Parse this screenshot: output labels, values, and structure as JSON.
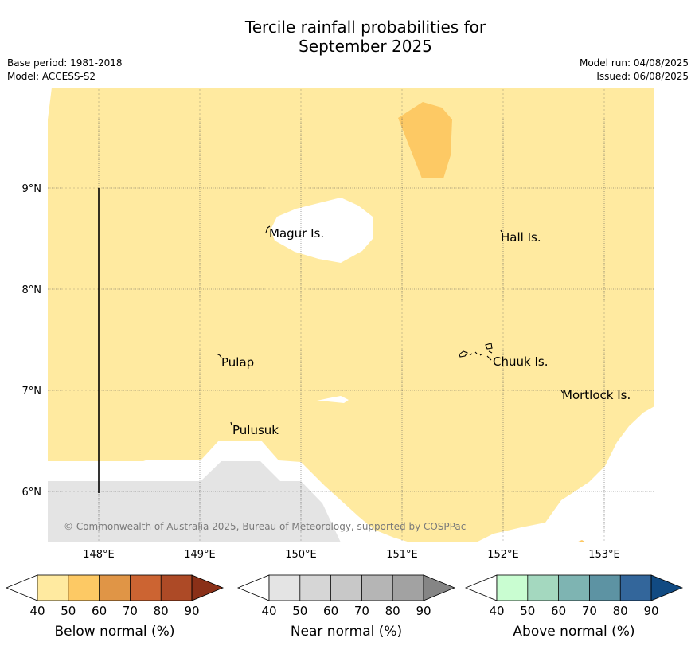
{
  "title": {
    "line1": "Tercile rainfall probabilities for",
    "line2": "September 2025"
  },
  "meta_left": {
    "base_period": "Base period: 1981-2018",
    "model": "Model: ACCESS-S2"
  },
  "meta_right": {
    "model_run": "Model run: 04/08/2025",
    "issued": "Issued: 06/08/2025"
  },
  "map": {
    "lat_labels": [
      "9°N",
      "8°N",
      "7°N",
      "6°N"
    ],
    "lon_labels": [
      "148°E",
      "149°E",
      "150°E",
      "151°E",
      "152°E",
      "153°E"
    ],
    "places": {
      "magur": "Magur Is.",
      "hall": "Hall Is.",
      "pulap": "Pulap",
      "chuuk": "Chuuk Is.",
      "mortlock": "Mortlock Is.",
      "pulusuk": "Pulusuk"
    },
    "copyright": "© Commonwealth of Australia 2025, Bureau of Meteorology, supported by COSPPac"
  },
  "legend": {
    "below": {
      "label": "Below normal (%)",
      "ticks": [
        "40",
        "50",
        "60",
        "70",
        "80",
        "90"
      ],
      "colors": [
        "#ffffff",
        "#ffeaa0",
        "#fdc964",
        "#e09546",
        "#cc6432",
        "#ad4a26",
        "#8a3018"
      ]
    },
    "near": {
      "label": "Near normal (%)",
      "ticks": [
        "40",
        "50",
        "60",
        "70",
        "80",
        "90"
      ],
      "colors": [
        "#ffffff",
        "#e4e4e4",
        "#d6d6d6",
        "#c8c8c8",
        "#b5b5b5",
        "#a2a2a2",
        "#858585"
      ]
    },
    "above": {
      "label": "Above normal (%)",
      "ticks": [
        "40",
        "50",
        "60",
        "70",
        "80",
        "90"
      ],
      "colors": [
        "#ffffff",
        "#c9fdd1",
        "#a4d8bf",
        "#7eb4b2",
        "#5d93a3",
        "#33669b",
        "#114a82"
      ]
    }
  },
  "colors": {
    "below_50_60": "#ffeaa0",
    "below_60_70": "#fdc964",
    "near_50_60": "#e4e4e4",
    "grid": "#555555",
    "coast": "#000000"
  }
}
